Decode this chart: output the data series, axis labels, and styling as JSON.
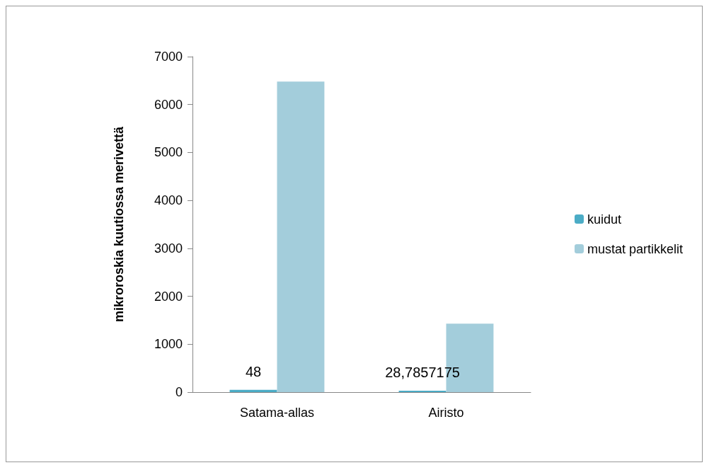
{
  "chart_data": {
    "type": "bar",
    "ylabel": "mikroroskia kuutiossa merivettä",
    "categories": [
      "Satama-allas",
      "Airisto"
    ],
    "series": [
      {
        "name": "kuidut",
        "color": "#4bacc6",
        "values": [
          48,
          28.7857175
        ],
        "value_labels": [
          "48",
          "28,7857175"
        ]
      },
      {
        "name": "mustat partikkelit",
        "color": "#a3cddb",
        "values": [
          6480,
          1430
        ]
      }
    ],
    "ylim": [
      0,
      7000
    ],
    "yticks": [
      0,
      1000,
      2000,
      3000,
      4000,
      5000,
      6000,
      7000
    ],
    "grid": false,
    "legend": "right"
  }
}
